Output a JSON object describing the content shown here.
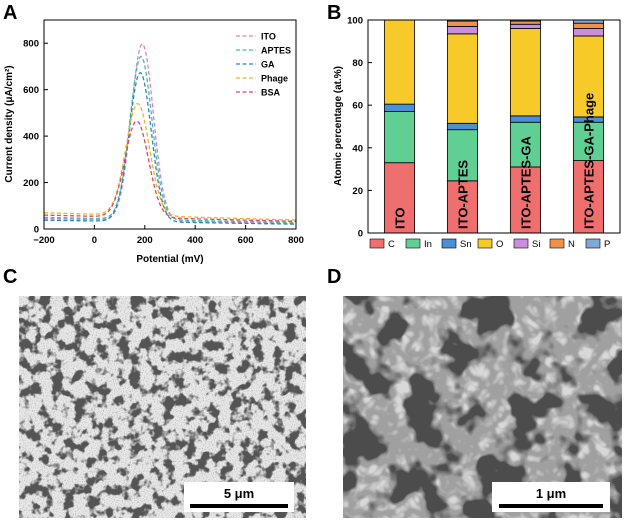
{
  "panels": {
    "a": "A",
    "b": "B",
    "c": "C",
    "d": "D"
  },
  "chart_data": [
    {
      "type": "line",
      "xlabel": "Potential (mV)",
      "ylabel": "Current density (μA/cm²)",
      "xlim": [
        -200,
        800
      ],
      "ylim": [
        0,
        900
      ],
      "xticks": [
        -200,
        0,
        200,
        400,
        600,
        800
      ],
      "yticks": [
        0,
        200,
        400,
        600,
        800
      ],
      "xtick_labels": [
        "−200",
        "0",
        "200",
        "400",
        "600",
        "800"
      ],
      "ytick_labels": [
        "0",
        "200",
        "400",
        "600",
        "800"
      ],
      "line_style": "dashed",
      "legend_position": "top-right",
      "series": [
        {
          "name": "ITO",
          "color": "#d97de0",
          "base": 45,
          "peak": 805,
          "center": 190,
          "width": 62
        },
        {
          "name": "APTES",
          "color": "#3fbfa3",
          "base": 50,
          "peak": 752,
          "center": 185,
          "width": 62
        },
        {
          "name": "GA",
          "color": "#2f86b8",
          "base": 38,
          "peak": 680,
          "center": 182,
          "width": 62
        },
        {
          "name": "Phage",
          "color": "#f2b41f",
          "base": 70,
          "peak": 552,
          "center": 172,
          "width": 66
        },
        {
          "name": "BSA",
          "color": "#d9476a",
          "base": 60,
          "peak": 475,
          "center": 168,
          "width": 66
        }
      ]
    },
    {
      "type": "bar",
      "stacked": true,
      "ylabel": "Atomic percentage (at.%)",
      "ylim": [
        0,
        100
      ],
      "yticks": [
        0,
        20,
        40,
        60,
        80,
        100
      ],
      "ytick_labels": [
        "0",
        "20",
        "40",
        "60",
        "80",
        "100"
      ],
      "categories": [
        "ITO",
        "ITO-APTES",
        "ITO-APTES-GA",
        "ITO-APTES-GA-Phage"
      ],
      "legend_position": "bottom",
      "series": [
        {
          "name": "C",
          "color": "#ef6f6f",
          "values": [
            33,
            24.5,
            31,
            34
          ]
        },
        {
          "name": "In",
          "color": "#5fcf93",
          "values": [
            24,
            24,
            21,
            18
          ]
        },
        {
          "name": "Sn",
          "color": "#4b8fd6",
          "values": [
            3.5,
            3,
            3,
            2.5
          ]
        },
        {
          "name": "O",
          "color": "#f7c929",
          "values": [
            39.5,
            42,
            41,
            38
          ]
        },
        {
          "name": "Si",
          "color": "#c98fdc",
          "values": [
            0,
            3.5,
            2,
            3.5
          ]
        },
        {
          "name": "N",
          "color": "#f0914a",
          "values": [
            0,
            2.5,
            1.5,
            2.5
          ]
        },
        {
          "name": "P",
          "color": "#7fa9d9",
          "values": [
            0,
            0.5,
            0.5,
            1.5
          ]
        }
      ]
    }
  ],
  "micrographs": [
    {
      "scale_bar_label": "5 μm"
    },
    {
      "scale_bar_label": "1 μm"
    }
  ]
}
